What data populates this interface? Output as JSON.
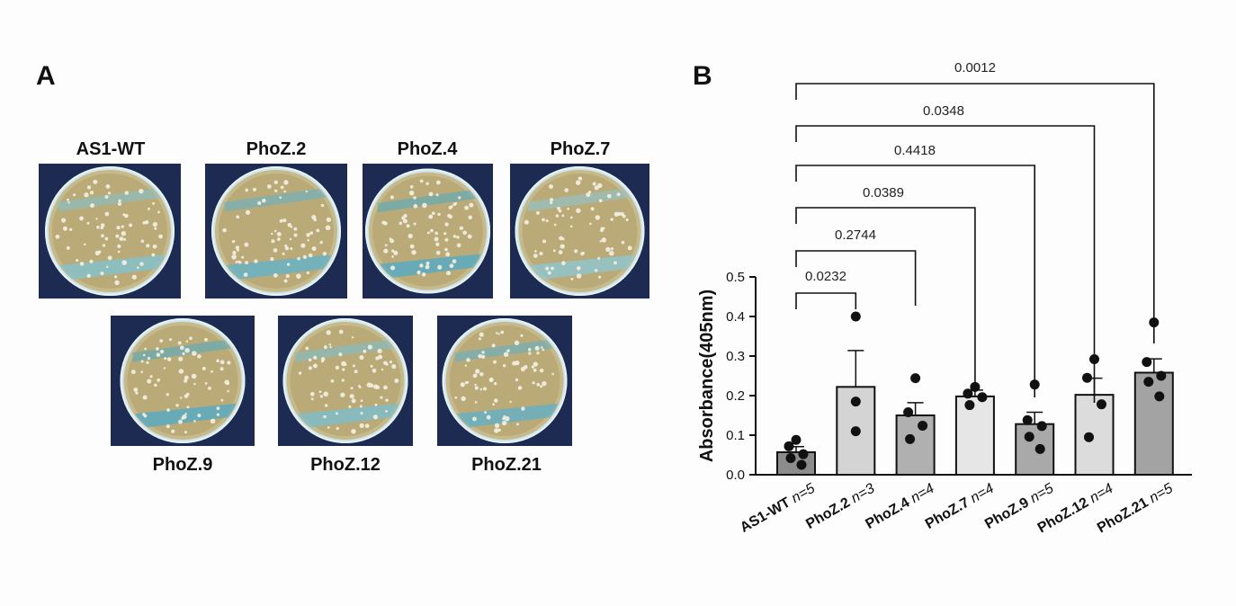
{
  "panels": {
    "a_label": "A",
    "b_label": "B"
  },
  "plates": [
    {
      "label": "AS1-WT",
      "accent": "#7fc3d4"
    },
    {
      "label": "PhoZ.2",
      "accent": "#5fb3cf"
    },
    {
      "label": "PhoZ.4",
      "accent": "#4ea9c9"
    },
    {
      "label": "PhoZ.7",
      "accent": "#8cc8d6"
    },
    {
      "label": "PhoZ.9",
      "accent": "#4ea9c9"
    },
    {
      "label": "PhoZ.12",
      "accent": "#78bfd2"
    },
    {
      "label": "PhoZ.21",
      "accent": "#5db0cc"
    }
  ],
  "chart_data": {
    "type": "bar",
    "ylabel": "Absorbance(405nm)",
    "ylim": [
      0,
      0.5
    ],
    "yticks": [
      "0.0",
      "0.1",
      "0.2",
      "0.3",
      "0.4",
      "0.5"
    ],
    "categories": [
      "AS1-WT",
      "PhoZ.2",
      "PhoZ.4",
      "PhoZ.7",
      "PhoZ.9",
      "PhoZ.12",
      "PhoZ.21"
    ],
    "n_labels": [
      "n=5",
      "n=3",
      "n=4",
      "n=4",
      "n=5",
      "n=4",
      "n=5"
    ],
    "values": [
      0.057,
      0.222,
      0.15,
      0.198,
      0.128,
      0.202,
      0.258
    ],
    "errors": [
      0.014,
      0.092,
      0.032,
      0.016,
      0.03,
      0.042,
      0.035
    ],
    "bar_colors": [
      "#8c8c8c",
      "#d4d4d4",
      "#b0b0b0",
      "#e6e6e6",
      "#a9a9a9",
      "#dcdcdc",
      "#a3a3a3"
    ],
    "points": [
      [
        0.088,
        0.072,
        0.052,
        0.042,
        0.025
      ],
      [
        0.4,
        0.185,
        0.11
      ],
      [
        0.244,
        0.158,
        0.124,
        0.09
      ],
      [
        0.222,
        0.205,
        0.196,
        0.176
      ],
      [
        0.228,
        0.138,
        0.123,
        0.096,
        0.065
      ],
      [
        0.292,
        0.245,
        0.178,
        0.095
      ],
      [
        0.385,
        0.285,
        0.25,
        0.235,
        0.198
      ]
    ],
    "comparisons": [
      {
        "to": "PhoZ.2",
        "p": "0.0232"
      },
      {
        "to": "PhoZ.4",
        "p": "0.2744"
      },
      {
        "to": "PhoZ.7",
        "p": "0.0389"
      },
      {
        "to": "PhoZ.9",
        "p": "0.4418"
      },
      {
        "to": "PhoZ.12",
        "p": "0.0348"
      },
      {
        "to": "PhoZ.21",
        "p": "0.0012"
      }
    ]
  }
}
